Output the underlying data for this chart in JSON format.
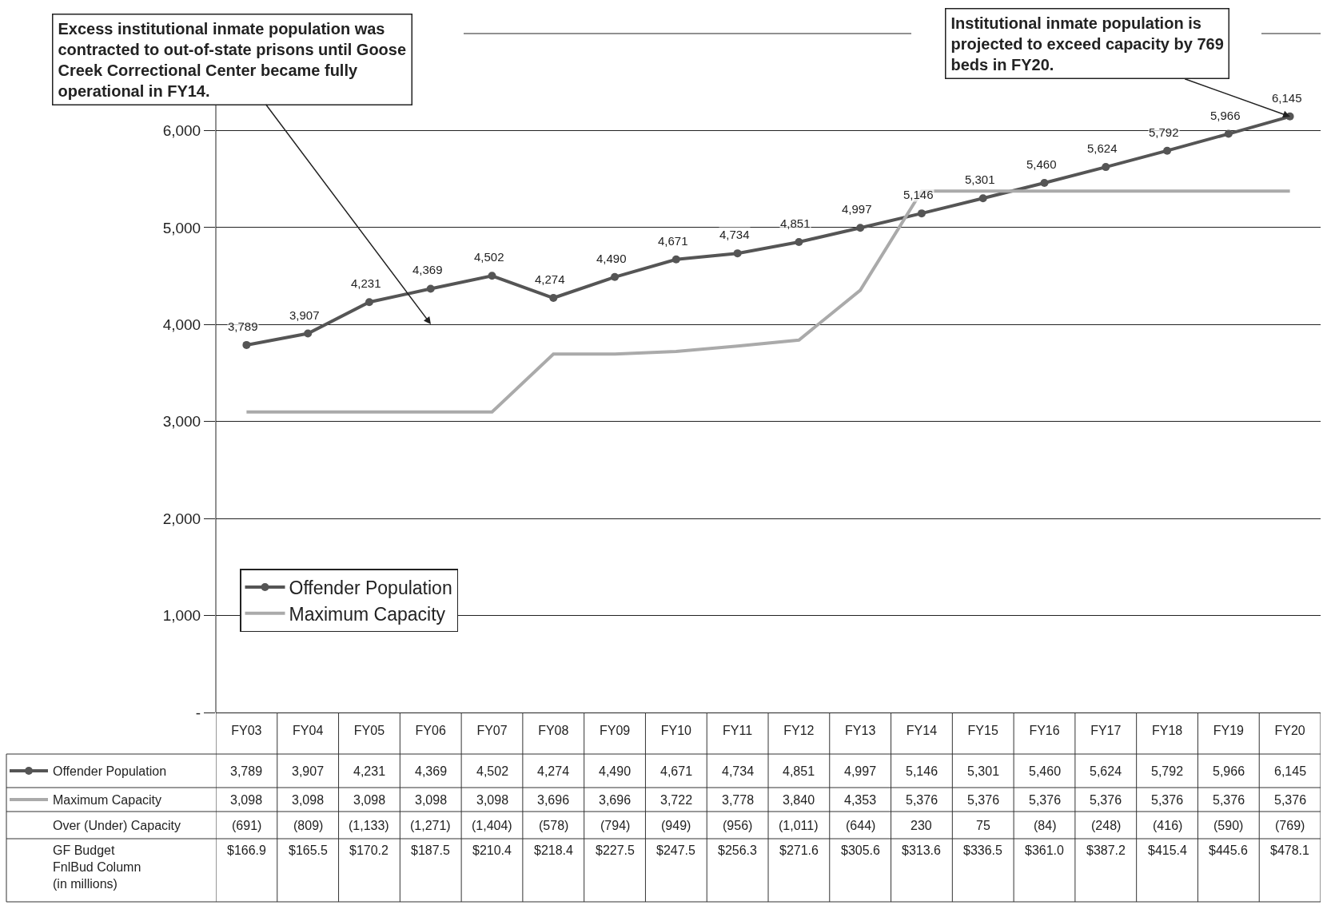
{
  "chart_data": {
    "type": "line",
    "categories": [
      "FY03",
      "FY04",
      "FY05",
      "FY06",
      "FY07",
      "FY08",
      "FY09",
      "FY10",
      "FY11",
      "FY12",
      "FY13",
      "FY14",
      "FY15",
      "FY16",
      "FY17",
      "FY18",
      "FY19",
      "FY20"
    ],
    "series": [
      {
        "name": "Offender Population",
        "color": "#555555",
        "marker": "circle",
        "data_labels": true,
        "values": [
          3789,
          3907,
          4231,
          4369,
          4502,
          4274,
          4490,
          4671,
          4734,
          4851,
          4997,
          5146,
          5301,
          5460,
          5624,
          5792,
          5966,
          6145
        ],
        "value_labels": [
          "3,789",
          "3,907",
          "4,231",
          "4,369",
          "4,502",
          "4,274",
          "4,490",
          "4,671",
          "4,734",
          "4,851",
          "4,997",
          "5,146",
          "5,301",
          "5,460",
          "5,624",
          "5,792",
          "5,966",
          "6,145"
        ]
      },
      {
        "name": "Maximum Capacity",
        "color": "#aaaaaa",
        "marker": "none",
        "values": [
          3098,
          3098,
          3098,
          3098,
          3098,
          3696,
          3696,
          3722,
          3778,
          3840,
          4353,
          5376,
          5376,
          5376,
          5376,
          5376,
          5376,
          5376
        ],
        "value_labels": [
          "3,098",
          "3,098",
          "3,098",
          "3,098",
          "3,098",
          "3,696",
          "3,696",
          "3,722",
          "3,778",
          "3,840",
          "4,353",
          "5,376",
          "5,376",
          "5,376",
          "5,376",
          "5,376",
          "5,376",
          "5,376"
        ]
      }
    ],
    "ylim": [
      0,
      7000
    ],
    "yticks": [
      {
        "value": 0,
        "label": "-"
      },
      {
        "value": 1000,
        "label": "1,000"
      },
      {
        "value": 2000,
        "label": "2,000"
      },
      {
        "value": 3000,
        "label": "3,000"
      },
      {
        "value": 4000,
        "label": "4,000"
      },
      {
        "value": 5000,
        "label": "5,000"
      },
      {
        "value": 6000,
        "label": "6,000"
      }
    ],
    "grid": "y",
    "legend": "bottom left",
    "line_style": "solid",
    "annotations": [
      "Excess institutional inmate population was contracted to out-of-state prisons until Goose Creek Correctional Center became fully operational in FY14.",
      "Institutional inmate population is projected to exceed capacity by 769 beds in FY20.",
      "Over (Under) Capacity",
      "(691)",
      "(809)",
      "(1,133)",
      "(1,271)",
      "(1,404)",
      "(578)",
      "(794)",
      "(949)",
      "(956)",
      "(1,011)",
      "(644)",
      "230",
      "75",
      "(84)",
      "(248)",
      "(416)",
      "(590)",
      "(769)",
      "GF Budget FnlBud Column (in millions)",
      "$166.9",
      "$165.5",
      "$170.2",
      "$187.5",
      "$210.4",
      "$218.4",
      "$227.5",
      "$247.5",
      "$256.3",
      "$271.6",
      "$305.6",
      "$313.6",
      "$336.5",
      "$361.0",
      "$387.2",
      "$415.4",
      "$445.6",
      "$478.1"
    ]
  }
}
